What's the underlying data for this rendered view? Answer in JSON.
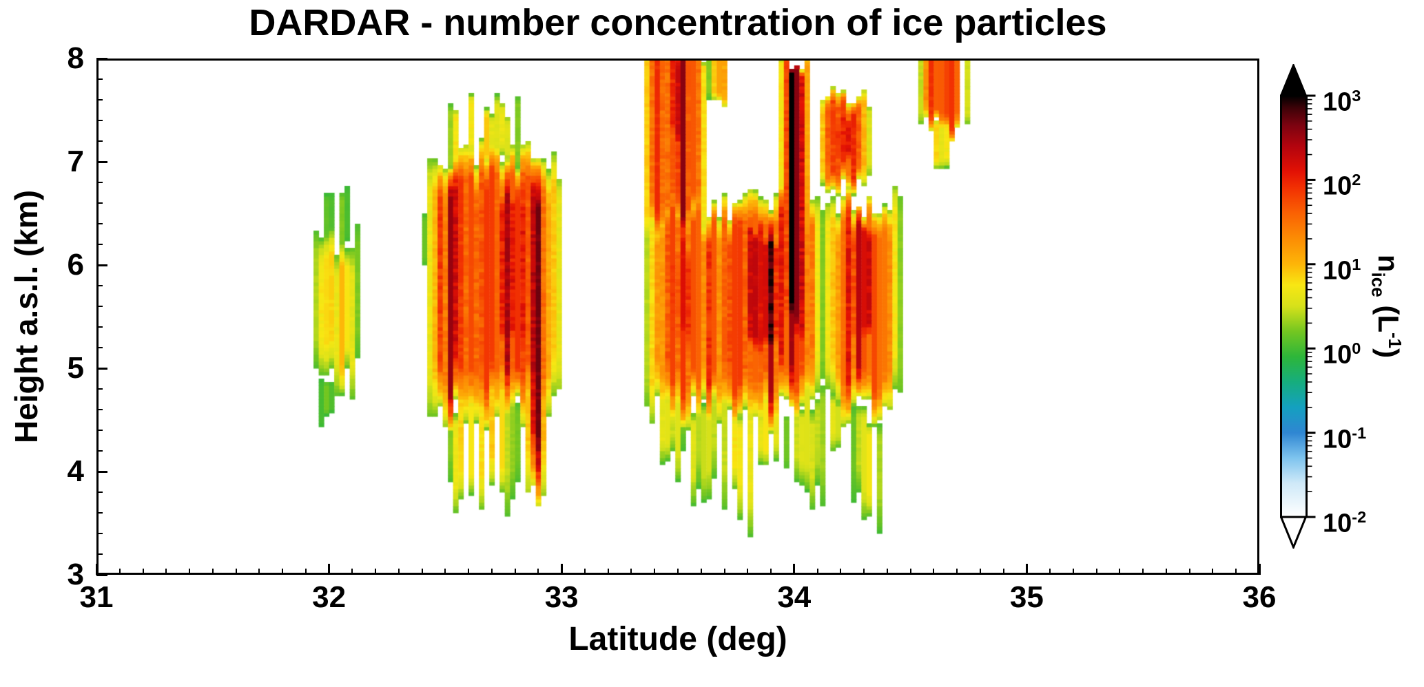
{
  "page": {
    "background": "#ffffff",
    "frame_color": "#000000"
  },
  "chart_data": {
    "type": "heatmap",
    "title": "DARDAR - number concentration of ice particles",
    "xlabel": "Latitude (deg)",
    "ylabel": "Height a.s.l. (km)",
    "x_range": [
      31,
      36
    ],
    "y_range": [
      3,
      8
    ],
    "x_ticks": [
      31,
      32,
      33,
      34,
      35,
      36
    ],
    "y_ticks": [
      3,
      4,
      5,
      6,
      7,
      8
    ],
    "x_minor_step": 0.1,
    "y_minor_step": 0.2,
    "grid": {
      "nx": 225,
      "ny": 150
    },
    "units": "L^-1",
    "colorbar": {
      "label": "n_ice (L^-1)",
      "label_parts": {
        "prefix": "n",
        "sub": "ice",
        "mid": " (L",
        "sup": "-1",
        "suffix": ")"
      },
      "scale": "log10",
      "log_range": [
        -2,
        3
      ],
      "ticks": [
        "10^3",
        "10^2",
        "10^1",
        "10^0",
        "10^-1",
        "10^-2"
      ],
      "stops": [
        [
          0.0,
          "#ffffff"
        ],
        [
          0.08,
          "#cfe9f8"
        ],
        [
          0.14,
          "#7ec4ee"
        ],
        [
          0.2,
          "#2f86d2"
        ],
        [
          0.26,
          "#14a0c0"
        ],
        [
          0.32,
          "#16ad7e"
        ],
        [
          0.38,
          "#2db63a"
        ],
        [
          0.44,
          "#73c621"
        ],
        [
          0.5,
          "#d6e11a"
        ],
        [
          0.55,
          "#f8e713"
        ],
        [
          0.6,
          "#fdb508"
        ],
        [
          0.66,
          "#fc8d04"
        ],
        [
          0.72,
          "#fa6203"
        ],
        [
          0.78,
          "#f23102"
        ],
        [
          0.82,
          "#e21104"
        ],
        [
          0.88,
          "#b3040e"
        ],
        [
          0.93,
          "#7c0310"
        ],
        [
          0.97,
          "#3f0208"
        ],
        [
          1.0,
          "#000000"
        ]
      ]
    },
    "clouds": [
      {
        "name": "small-cell",
        "lat": [
          31.93,
          32.13
        ],
        "h": [
          4.85,
          6.3
        ],
        "peak": 0.9,
        "hedge": 0.3,
        "jitter": 0.25,
        "rampB": 0.25,
        "rampT": 0.2
      },
      {
        "name": "small-cell-top-tips",
        "lat": [
          31.98,
          32.08
        ],
        "h": [
          6.2,
          6.68
        ],
        "peak": 0.25,
        "sparse": 0.25,
        "jitter": 0.4
      },
      {
        "name": "small-cell-bottom-tip",
        "lat": [
          31.96,
          32.03
        ],
        "h": [
          4.5,
          4.95
        ],
        "peak": 0.05,
        "sparse": 0.3,
        "jitter": 0.4
      },
      {
        "name": "left-cell-main",
        "lat": [
          32.42,
          33.0
        ],
        "h": [
          4.55,
          7.05
        ],
        "peak": 1.8,
        "hedge": 0.18,
        "streaky": true,
        "jitter": 0.15
      },
      {
        "name": "left-cell-top-tips",
        "lat": [
          32.5,
          32.82
        ],
        "h": [
          6.95,
          7.55
        ],
        "peak": 0.8,
        "sparse": 0.3,
        "jitter": 0.4
      },
      {
        "name": "left-cell-virga",
        "lat": [
          32.5,
          32.82
        ],
        "h": [
          3.7,
          4.75
        ],
        "peak": 0.85,
        "sparse": 0.35,
        "jitter": 0.35,
        "rampB": 0.3
      },
      {
        "name": "left-cell-dark-streak",
        "lat": [
          32.85,
          32.93
        ],
        "h": [
          3.78,
          7.0
        ],
        "peak": 2.6,
        "hedge": 0.4,
        "jitter": 0.1
      },
      {
        "name": "left-cell-core",
        "lat": [
          32.72,
          32.87
        ],
        "h": [
          5.0,
          6.9
        ],
        "peak": 2.4,
        "hedge": 0.3,
        "streaky": true
      },
      {
        "name": "left-cell-west-fringe",
        "lat": [
          32.36,
          32.47
        ],
        "h": [
          5.9,
          6.5
        ],
        "peak": 0.35,
        "sparse": 0.45,
        "jitter": 0.4
      },
      {
        "name": "center-tower",
        "lat": [
          33.35,
          33.63
        ],
        "h": [
          6.3,
          8.12
        ],
        "peak": 1.85,
        "hedge": 0.2,
        "streaky": true,
        "rampT": 0.02
      },
      {
        "name": "center-tower-dark-top",
        "lat": [
          33.45,
          33.56
        ],
        "h": [
          7.1,
          8.12
        ],
        "peak": 2.35,
        "hedge": 0.35,
        "rampT": 0.02
      },
      {
        "name": "center-top-bits",
        "lat": [
          33.63,
          33.74
        ],
        "h": [
          7.55,
          8.12
        ],
        "peak": 1.1,
        "sparse": 0.3,
        "rampT": 0.02
      },
      {
        "name": "center-cell-main",
        "lat": [
          33.35,
          34.13
        ],
        "h": [
          4.55,
          6.62
        ],
        "peak": 1.75,
        "hedge": 0.12,
        "streaky": true
      },
      {
        "name": "center-cell-core-west",
        "lat": [
          33.44,
          33.57
        ],
        "h": [
          5.1,
          6.35
        ],
        "peak": 2.2,
        "hedge": 0.3
      },
      {
        "name": "center-cell-core-east",
        "lat": [
          33.76,
          33.98
        ],
        "h": [
          5.0,
          6.45
        ],
        "peak": 2.25,
        "hedge": 0.3,
        "streaky": true
      },
      {
        "name": "tall-dark-column",
        "lat": [
          33.94,
          34.07
        ],
        "h": [
          5.0,
          8.12
        ],
        "peak": 2.55,
        "hedge": 0.3,
        "streaky": true,
        "rampT": 0.02
      },
      {
        "name": "east-column",
        "lat": [
          34.13,
          34.46
        ],
        "h": [
          4.6,
          6.65
        ],
        "peak": 1.65,
        "hedge": 0.2,
        "streaky": true
      },
      {
        "name": "east-column-core",
        "lat": [
          34.21,
          34.37
        ],
        "h": [
          5.1,
          6.5
        ],
        "peak": 2.2,
        "hedge": 0.3
      },
      {
        "name": "east-top-patch",
        "lat": [
          34.1,
          34.33
        ],
        "h": [
          6.75,
          7.65
        ],
        "peak": 1.85,
        "hedge": 0.25
      },
      {
        "name": "east-top-patch-dark",
        "lat": [
          34.14,
          34.26
        ],
        "h": [
          7.0,
          7.5
        ],
        "peak": 2.25,
        "hedge": 0.35
      },
      {
        "name": "far-east-top",
        "lat": [
          34.54,
          34.75
        ],
        "h": [
          7.3,
          8.12
        ],
        "peak": 1.75,
        "rampT": 0.02,
        "sparse": 0.12,
        "jitter": 0.3
      },
      {
        "name": "far-east-drip",
        "lat": [
          34.6,
          34.68
        ],
        "h": [
          6.9,
          7.4
        ],
        "peak": 0.8,
        "sparse": 0.3
      },
      {
        "name": "virga-1",
        "lat": [
          33.4,
          33.53
        ],
        "h": [
          4.05,
          4.75
        ],
        "peak": 0.65,
        "sparse": 0.4,
        "jitter": 0.45,
        "rampB": 0.35
      },
      {
        "name": "virga-2",
        "lat": [
          33.55,
          33.67
        ],
        "h": [
          3.8,
          4.7
        ],
        "peak": 0.6,
        "sparse": 0.4,
        "jitter": 0.45,
        "rampB": 0.35
      },
      {
        "name": "virga-3",
        "lat": [
          33.69,
          33.83
        ],
        "h": [
          3.6,
          4.7
        ],
        "peak": 0.7,
        "sparse": 0.4,
        "jitter": 0.45,
        "rampB": 0.35
      },
      {
        "name": "virga-4",
        "lat": [
          33.84,
          33.97
        ],
        "h": [
          3.95,
          4.7
        ],
        "peak": 0.75,
        "sparse": 0.4,
        "jitter": 0.45,
        "rampB": 0.35
      },
      {
        "name": "virga-5",
        "lat": [
          33.99,
          34.13
        ],
        "h": [
          3.75,
          4.7
        ],
        "peak": 0.7,
        "sparse": 0.4,
        "jitter": 0.45,
        "rampB": 0.35
      },
      {
        "name": "virga-6",
        "lat": [
          34.14,
          34.23
        ],
        "h": [
          4.1,
          4.7
        ],
        "peak": 0.6,
        "sparse": 0.45,
        "jitter": 0.45,
        "rampB": 0.35
      },
      {
        "name": "virga-7",
        "lat": [
          34.25,
          34.39
        ],
        "h": [
          3.55,
          4.72
        ],
        "peak": 0.7,
        "sparse": 0.4,
        "jitter": 0.45,
        "rampB": 0.35
      }
    ]
  }
}
